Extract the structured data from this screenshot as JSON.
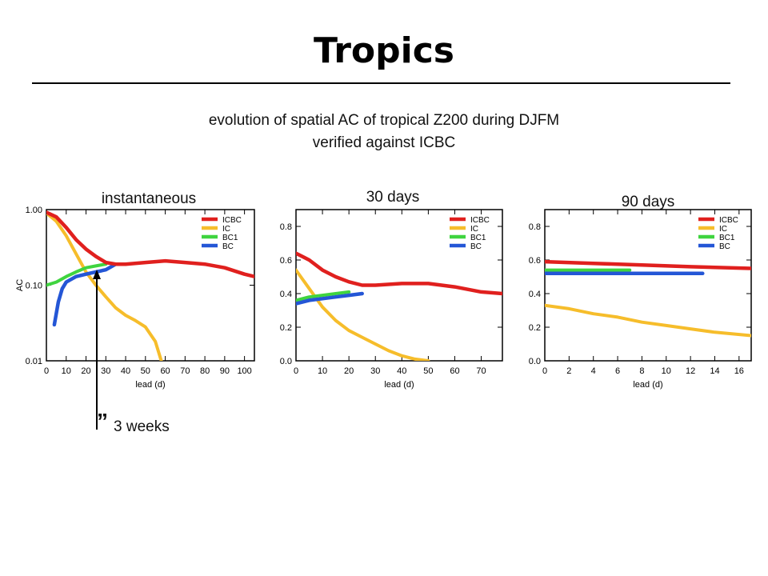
{
  "title": "Tropics",
  "subtitle": [
    "evolution of spatial AC of tropical Z200 during DJFM",
    "verified against ICBC"
  ],
  "annotation": {
    "mark": "”",
    "text": "3 weeks"
  },
  "colors": {
    "ICBC": "#e0201e",
    "IC": "#f6bd2b",
    "BC1": "#3fd43f",
    "BC": "#2456d6"
  },
  "chart_data": [
    {
      "type": "line",
      "panel_label": "instantaneous",
      "xlabel": "lead (d)",
      "ylabel": "AC",
      "yscale": "log",
      "xlim": [
        0,
        105
      ],
      "ylim": [
        0.01,
        1.0
      ],
      "xticks": [
        0,
        10,
        20,
        30,
        40,
        50,
        60,
        70,
        80,
        90,
        100
      ],
      "yticks": [
        0.01,
        0.1,
        1.0
      ],
      "ytick_labels": [
        "0.01",
        "0.10",
        "1.00"
      ],
      "legend": [
        "ICBC",
        "IC",
        "BC1",
        "BC"
      ],
      "legend_position": "top-right",
      "series": [
        {
          "name": "ICBC",
          "x": [
            0,
            5,
            10,
            15,
            20,
            25,
            30,
            35,
            40,
            50,
            60,
            70,
            80,
            90,
            100,
            105
          ],
          "y": [
            0.92,
            0.8,
            0.58,
            0.4,
            0.3,
            0.24,
            0.2,
            0.19,
            0.19,
            0.2,
            0.21,
            0.2,
            0.19,
            0.17,
            0.14,
            0.13
          ]
        },
        {
          "name": "IC",
          "x": [
            0,
            5,
            10,
            15,
            20,
            25,
            30,
            35,
            40,
            45,
            50,
            55,
            58
          ],
          "y": [
            0.9,
            0.7,
            0.45,
            0.26,
            0.15,
            0.1,
            0.07,
            0.05,
            0.04,
            0.034,
            0.028,
            0.018,
            0.01
          ]
        },
        {
          "name": "BC1",
          "x": [
            0,
            5,
            10,
            15,
            20,
            25,
            30
          ],
          "y": [
            0.1,
            0.11,
            0.13,
            0.15,
            0.17,
            0.18,
            0.19
          ]
        },
        {
          "name": "BC",
          "x": [
            4,
            6,
            8,
            10,
            15,
            20,
            25,
            30,
            35
          ],
          "y": [
            0.03,
            0.06,
            0.09,
            0.11,
            0.13,
            0.14,
            0.15,
            0.16,
            0.19
          ]
        }
      ]
    },
    {
      "type": "line",
      "panel_label": "30 days",
      "xlabel": "lead (d)",
      "ylabel": "",
      "xlim": [
        0,
        78
      ],
      "ylim": [
        0,
        0.9
      ],
      "xticks": [
        0,
        10,
        20,
        30,
        40,
        50,
        60,
        70
      ],
      "yticks": [
        0.0,
        0.2,
        0.4,
        0.6,
        0.8
      ],
      "ytick_labels": [
        "0.0",
        "0.2",
        "0.4",
        "0.6",
        "0.8"
      ],
      "legend": [
        "ICBC",
        "IC",
        "BC1",
        "BC"
      ],
      "legend_position": "top-right",
      "series": [
        {
          "name": "ICBC",
          "x": [
            0,
            5,
            10,
            15,
            20,
            25,
            30,
            40,
            50,
            60,
            70,
            78
          ],
          "y": [
            0.64,
            0.6,
            0.54,
            0.5,
            0.47,
            0.45,
            0.45,
            0.46,
            0.46,
            0.44,
            0.41,
            0.4
          ]
        },
        {
          "name": "IC",
          "x": [
            0,
            5,
            10,
            15,
            20,
            25,
            30,
            35,
            40,
            45,
            50
          ],
          "y": [
            0.54,
            0.43,
            0.32,
            0.24,
            0.18,
            0.14,
            0.1,
            0.06,
            0.03,
            0.01,
            0.0
          ]
        },
        {
          "name": "BC1",
          "x": [
            0,
            5,
            10,
            15,
            20
          ],
          "y": [
            0.36,
            0.38,
            0.39,
            0.4,
            0.41
          ]
        },
        {
          "name": "BC",
          "x": [
            0,
            5,
            10,
            15,
            20,
            25
          ],
          "y": [
            0.34,
            0.36,
            0.37,
            0.38,
            0.39,
            0.4
          ]
        }
      ]
    },
    {
      "type": "line",
      "panel_label": "90 days",
      "xlabel": "lead (d)",
      "ylabel": "",
      "xlim": [
        0,
        17
      ],
      "ylim": [
        0,
        0.9
      ],
      "xticks": [
        0,
        2,
        4,
        6,
        8,
        10,
        12,
        14,
        16
      ],
      "yticks": [
        0.0,
        0.2,
        0.4,
        0.6,
        0.8
      ],
      "ytick_labels": [
        "0.0",
        "0.2",
        "0.4",
        "0.6",
        "0.8"
      ],
      "legend": [
        "ICBC",
        "IC",
        "BC1",
        "BC"
      ],
      "legend_position": "top-right",
      "series": [
        {
          "name": "ICBC",
          "x": [
            0,
            4,
            8,
            12,
            17
          ],
          "y": [
            0.59,
            0.58,
            0.57,
            0.56,
            0.55
          ]
        },
        {
          "name": "IC",
          "x": [
            0,
            2,
            4,
            6,
            8,
            10,
            12,
            14,
            17
          ],
          "y": [
            0.33,
            0.31,
            0.28,
            0.26,
            0.23,
            0.21,
            0.19,
            0.17,
            0.15
          ]
        },
        {
          "name": "BC1",
          "x": [
            0,
            7
          ],
          "y": [
            0.54,
            0.54
          ]
        },
        {
          "name": "BC",
          "x": [
            0,
            13
          ],
          "y": [
            0.52,
            0.52
          ]
        }
      ]
    }
  ]
}
